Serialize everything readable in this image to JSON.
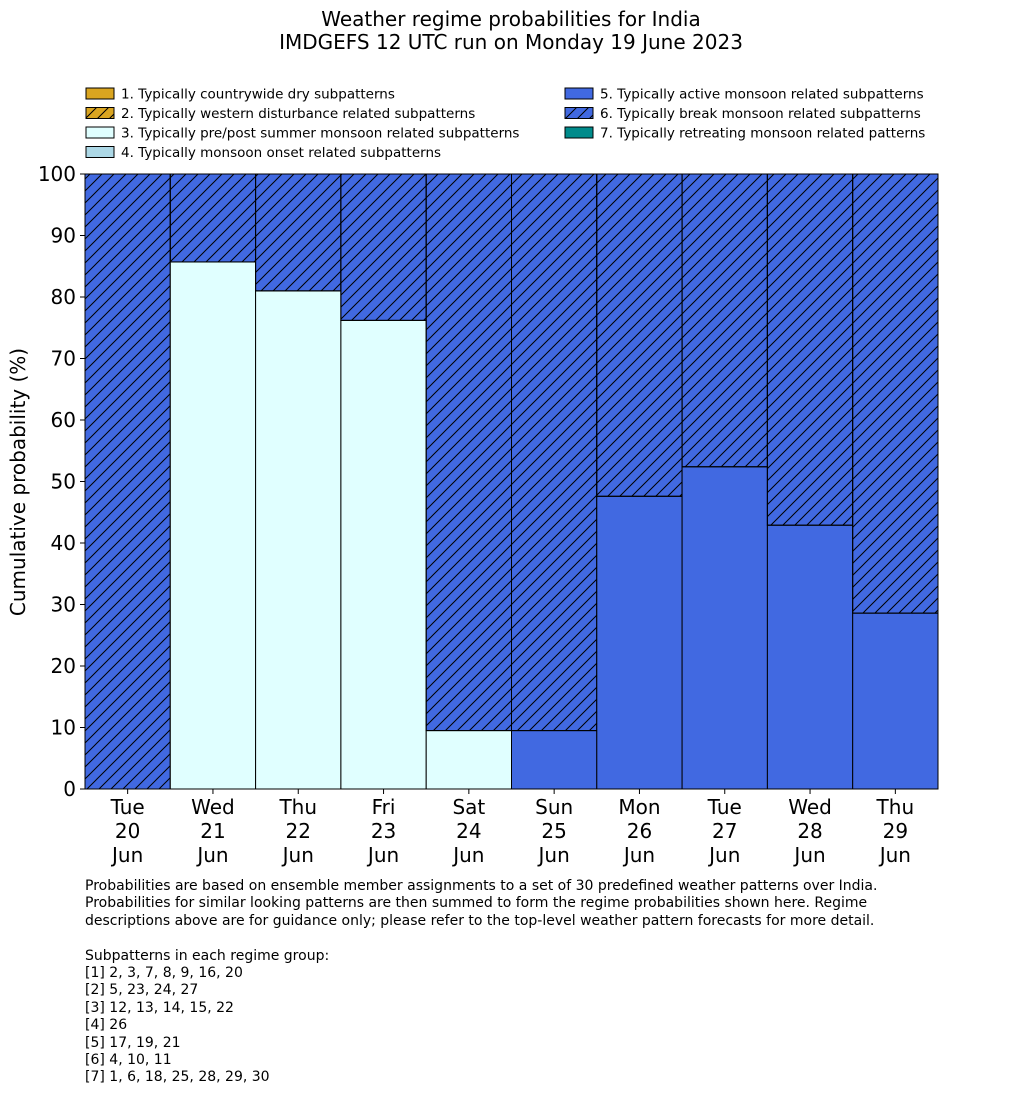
{
  "chart_data": {
    "type": "bar",
    "stacked": true,
    "title": "Weather regime probabilities for India",
    "subtitle": "IMDGEFS 12 UTC run on Monday 19 June 2023",
    "xlabel": "",
    "ylabel": "Cumulative probability (%)",
    "ylim": [
      0,
      100
    ],
    "yticks": [
      0,
      10,
      20,
      30,
      40,
      50,
      60,
      70,
      80,
      90,
      100
    ],
    "grid": false,
    "legend_position": "top",
    "categories": [
      "Tue\n20\nJun",
      "Wed\n21\nJun",
      "Thu\n22\nJun",
      "Fri\n23\nJun",
      "Sat\n24\nJun",
      "Sun\n25\nJun",
      "Mon\n26\nJun",
      "Tue\n27\nJun",
      "Wed\n28\nJun",
      "Thu\n29\nJun"
    ],
    "category_lines": [
      [
        "Tue",
        "20",
        "Jun"
      ],
      [
        "Wed",
        "21",
        "Jun"
      ],
      [
        "Thu",
        "22",
        "Jun"
      ],
      [
        "Fri",
        "23",
        "Jun"
      ],
      [
        "Sat",
        "24",
        "Jun"
      ],
      [
        "Sun",
        "25",
        "Jun"
      ],
      [
        "Mon",
        "26",
        "Jun"
      ],
      [
        "Tue",
        "27",
        "Jun"
      ],
      [
        "Wed",
        "28",
        "Jun"
      ],
      [
        "Thu",
        "29",
        "Jun"
      ]
    ],
    "series": [
      {
        "name": "1. Typically countrywide dry subpatterns",
        "color": "#DAA520",
        "hatch": false,
        "values": [
          0,
          0,
          0,
          0,
          0,
          0,
          0,
          0,
          0,
          0
        ]
      },
      {
        "name": "2. Typically western disturbance related subpatterns",
        "color": "#DAA520",
        "hatch": true,
        "values": [
          0,
          0,
          0,
          0,
          0,
          0,
          0,
          0,
          0,
          0
        ]
      },
      {
        "name": "3. Typically pre/post summer monsoon related subpatterns",
        "color": "#E0FFFF",
        "hatch": false,
        "values": [
          0,
          85.7,
          81.0,
          76.2,
          9.5,
          0,
          0,
          0,
          0,
          0
        ]
      },
      {
        "name": "4. Typically monsoon onset related subpatterns",
        "color": "#ADD8E6",
        "hatch": false,
        "values": [
          0,
          0,
          0,
          0,
          0,
          0,
          0,
          0,
          0,
          0
        ]
      },
      {
        "name": "5. Typically active monsoon related subpatterns",
        "color": "#4169E1",
        "hatch": false,
        "values": [
          0,
          0,
          0,
          0,
          0,
          9.5,
          47.6,
          52.4,
          42.9,
          28.6
        ]
      },
      {
        "name": "6. Typically break monsoon related subpatterns",
        "color": "#4169E1",
        "hatch": true,
        "values": [
          100,
          14.3,
          19.0,
          23.8,
          90.5,
          90.5,
          52.4,
          47.6,
          57.1,
          71.4
        ]
      },
      {
        "name": "7. Typically retreating monsoon related patterns",
        "color": "#008B8B",
        "hatch": false,
        "values": [
          0,
          0,
          0,
          0,
          0,
          0,
          0,
          0,
          0,
          0
        ]
      }
    ]
  },
  "notes": {
    "description_lines": [
      "Probabilities are based on ensemble member assignments to a set of 30 predefined weather patterns over India.",
      "Probabilities for similar looking patterns are then summed to form the regime probabilities shown here. Regime",
      "descriptions above are for guidance only; please refer to the top-level weather pattern forecasts for more detail."
    ],
    "groups_heading": "Subpatterns in each regime group:",
    "groups": [
      "[1] 2, 3, 7, 8, 9, 16, 20",
      "[2] 5, 23, 24, 27",
      "[3] 12, 13, 14, 15, 22",
      "[4] 26",
      "[5] 17, 19, 21",
      "[6] 4, 10, 11",
      "[7] 1, 6, 18, 25, 28, 29, 30"
    ]
  }
}
